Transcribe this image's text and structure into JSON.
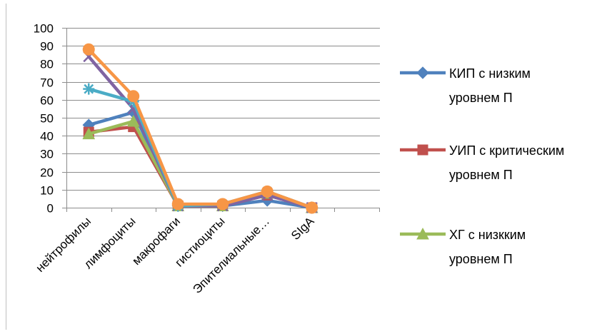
{
  "chart_data": {
    "type": "line",
    "title": "",
    "xlabel": "",
    "ylabel": "",
    "ylim": [
      0,
      100
    ],
    "yticks": [
      0,
      10,
      20,
      30,
      40,
      50,
      60,
      70,
      80,
      90,
      100
    ],
    "grid": true,
    "legend_position": "right",
    "categories": [
      "нейтрофилы",
      "лимфоциты",
      "макрофаги",
      "гистиоциты",
      "Эпителиальные…",
      "SIgA"
    ],
    "series": [
      {
        "name": "КИП  с низким уровнем П",
        "legend_lines": [
          "КИП  с низким",
          "уровнем П"
        ],
        "in_legend": true,
        "color": "#4f81bd",
        "marker": "diamond",
        "values": [
          46,
          53,
          1,
          1,
          4,
          0
        ]
      },
      {
        "name": "УИП с критическим уровнем П",
        "legend_lines": [
          "УИП с критическим",
          "уровнем П"
        ],
        "in_legend": true,
        "color": "#c0504d",
        "marker": "square",
        "values": [
          42,
          45,
          1,
          1,
          7,
          0
        ]
      },
      {
        "name": "ХГ с низкким уровнем П",
        "legend_lines": [
          "ХГ с низкким",
          "уровнем П"
        ],
        "in_legend": true,
        "color": "#9bbb59",
        "marker": "triangle",
        "values": [
          41,
          48,
          1,
          1,
          8,
          0
        ]
      },
      {
        "in_legend": false,
        "color": "#8064a2",
        "marker": "x",
        "values": [
          84,
          55,
          1,
          1,
          7,
          0
        ]
      },
      {
        "in_legend": false,
        "color": "#4bacc6",
        "marker": "star",
        "values": [
          66,
          59,
          1,
          2,
          9,
          0
        ]
      },
      {
        "in_legend": false,
        "color": "#f79646",
        "marker": "circle",
        "values": [
          88,
          62,
          2,
          2,
          9,
          0
        ]
      }
    ]
  }
}
